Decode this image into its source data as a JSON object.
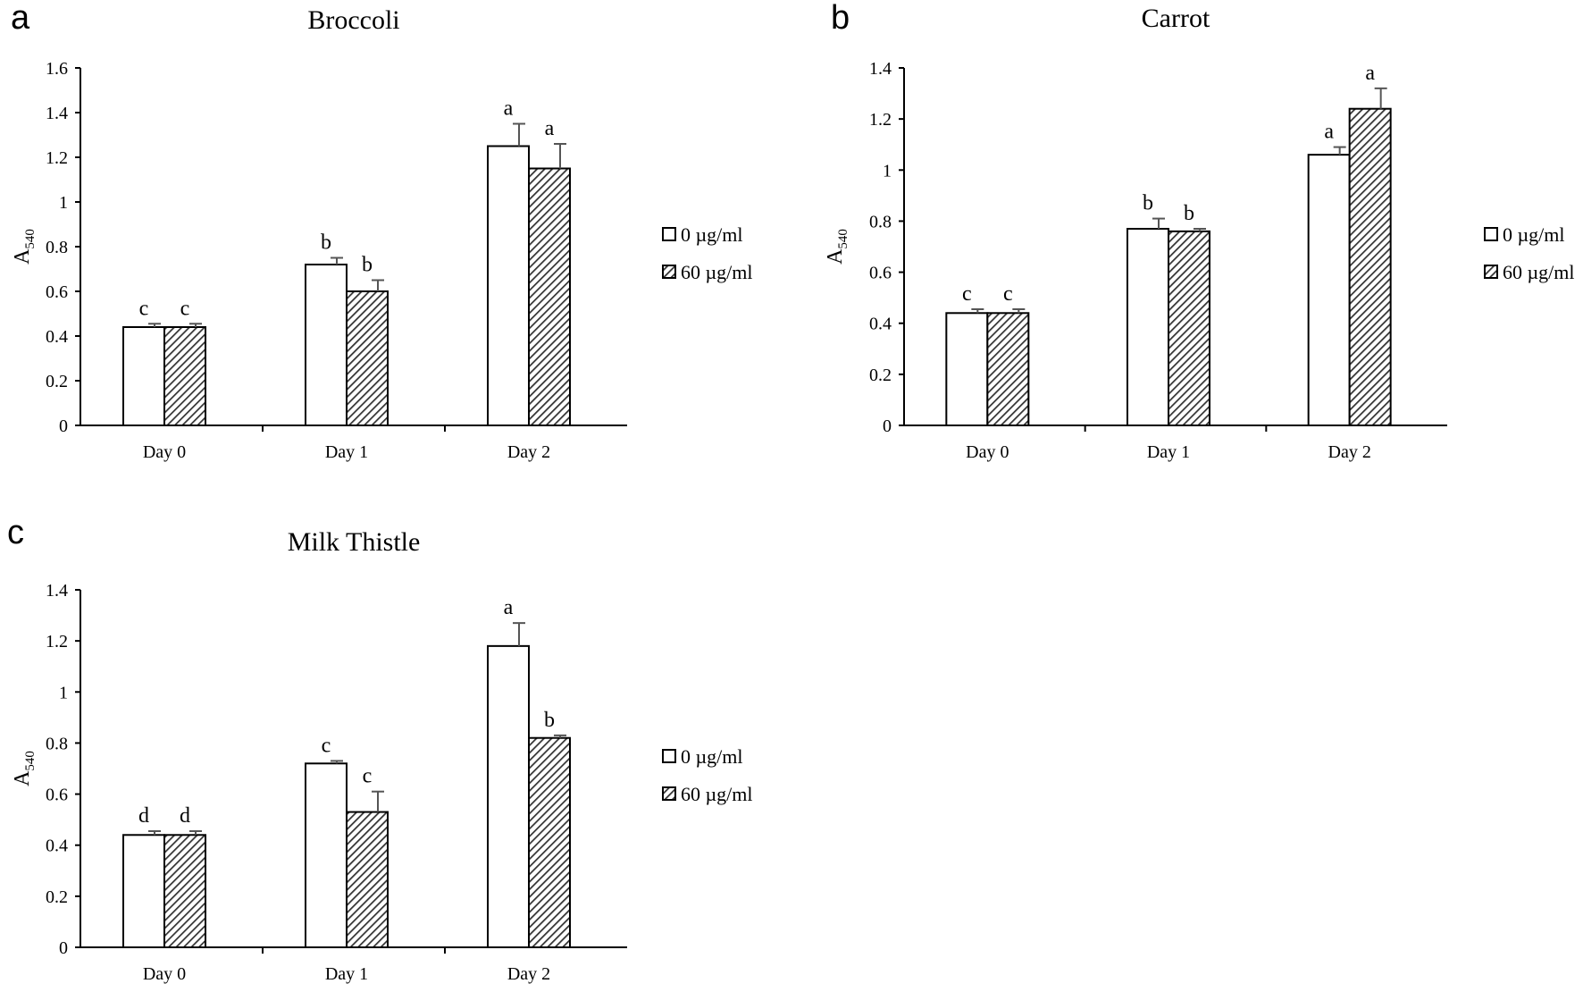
{
  "chart_data": [
    {
      "panel": "a",
      "type": "bar",
      "title": "Broccoli",
      "ylabel": "A",
      "ylabel_sub": "540",
      "ylim": [
        0,
        1.6
      ],
      "yticks": [
        "0",
        "0.2",
        "0.4",
        "0.6",
        "0.8",
        "1",
        "1.2",
        "1.4",
        "1.6"
      ],
      "categories": [
        "Day 0",
        "Day 1",
        "Day 2"
      ],
      "series": [
        {
          "name": "0 µg/ml",
          "values": [
            0.44,
            0.72,
            1.25
          ],
          "errors": [
            0.015,
            0.03,
            0.1
          ],
          "labels": [
            "c",
            "b",
            "a"
          ]
        },
        {
          "name": "60 µg/ml",
          "values": [
            0.44,
            0.6,
            1.15
          ],
          "errors": [
            0.015,
            0.05,
            0.11
          ],
          "labels": [
            "c",
            "b",
            "a"
          ]
        }
      ],
      "legend_position": "right"
    },
    {
      "panel": "b",
      "type": "bar",
      "title": "Carrot",
      "ylabel": "A",
      "ylabel_sub": "540",
      "ylim": [
        0,
        1.4
      ],
      "yticks": [
        "0",
        "0.2",
        "0.4",
        "0.6",
        "0.8",
        "1",
        "1.2",
        "1.4"
      ],
      "categories": [
        "Day 0",
        "Day 1",
        "Day 2"
      ],
      "series": [
        {
          "name": "0 µg/ml",
          "values": [
            0.44,
            0.77,
            1.06
          ],
          "errors": [
            0.015,
            0.04,
            0.03
          ],
          "labels": [
            "c",
            "b",
            "a"
          ]
        },
        {
          "name": "60 µg/ml",
          "values": [
            0.44,
            0.76,
            1.24
          ],
          "errors": [
            0.015,
            0.01,
            0.08
          ],
          "labels": [
            "c",
            "b",
            "a"
          ]
        }
      ],
      "legend_position": "right"
    },
    {
      "panel": "c",
      "type": "bar",
      "title": "Milk Thistle",
      "ylabel": "A",
      "ylabel_sub": "540",
      "ylim": [
        0,
        1.4
      ],
      "yticks": [
        "0",
        "0.2",
        "0.4",
        "0.6",
        "0.8",
        "1",
        "1.2",
        "1.4"
      ],
      "categories": [
        "Day 0",
        "Day 1",
        "Day 2"
      ],
      "series": [
        {
          "name": "0 µg/ml",
          "values": [
            0.44,
            0.72,
            1.18
          ],
          "errors": [
            0.015,
            0.01,
            0.09
          ],
          "labels": [
            "d",
            "c",
            "a"
          ]
        },
        {
          "name": "60 µg/ml",
          "values": [
            0.44,
            0.53,
            0.82
          ],
          "errors": [
            0.015,
            0.08,
            0.01
          ],
          "labels": [
            "d",
            "c",
            "b"
          ]
        }
      ],
      "legend_position": "right"
    }
  ],
  "colors": {
    "bar_fill_0": "#ffffff",
    "bar_stroke": "#000000",
    "hatch": "#333333",
    "error_bar": "#555555"
  }
}
